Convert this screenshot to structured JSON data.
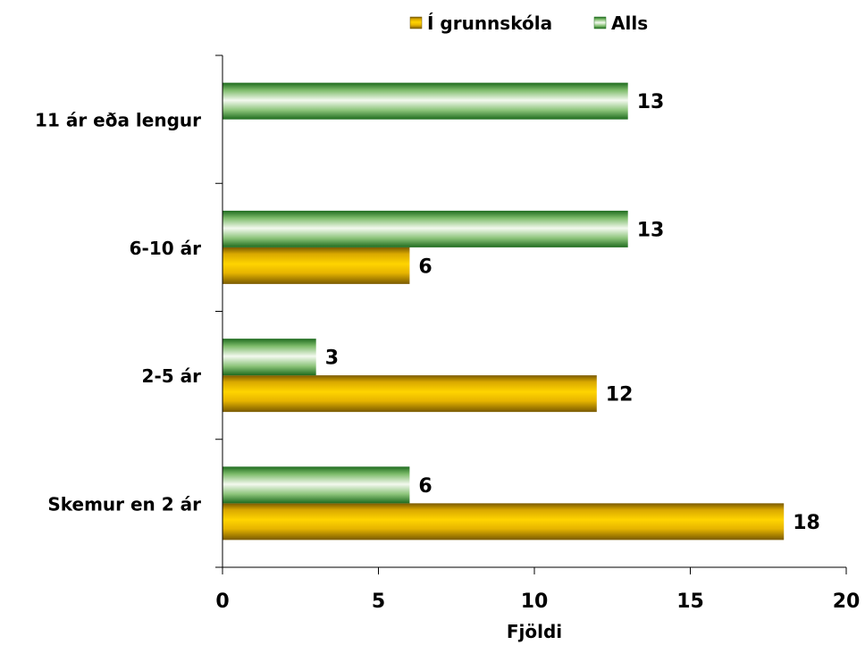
{
  "chart_data": {
    "type": "bar",
    "orientation": "horizontal",
    "categories": [
      "Skemur en 2 ár",
      "2-5 ár",
      "6-10 ár",
      "11 ár eða lengur"
    ],
    "series": [
      {
        "name": "Í grunnskóla",
        "values": [
          18,
          12,
          6,
          null
        ],
        "color": "#f2c200"
      },
      {
        "name": "Alls",
        "values": [
          6,
          3,
          13,
          13
        ],
        "color": "#3c9a3c"
      }
    ],
    "xlabel": "Fjöldi",
    "ylabel": "",
    "xlim": [
      0,
      20
    ],
    "xticks": [
      "0",
      "5",
      "10",
      "15",
      "20"
    ],
    "grid": false,
    "legend_position": "top-right"
  }
}
